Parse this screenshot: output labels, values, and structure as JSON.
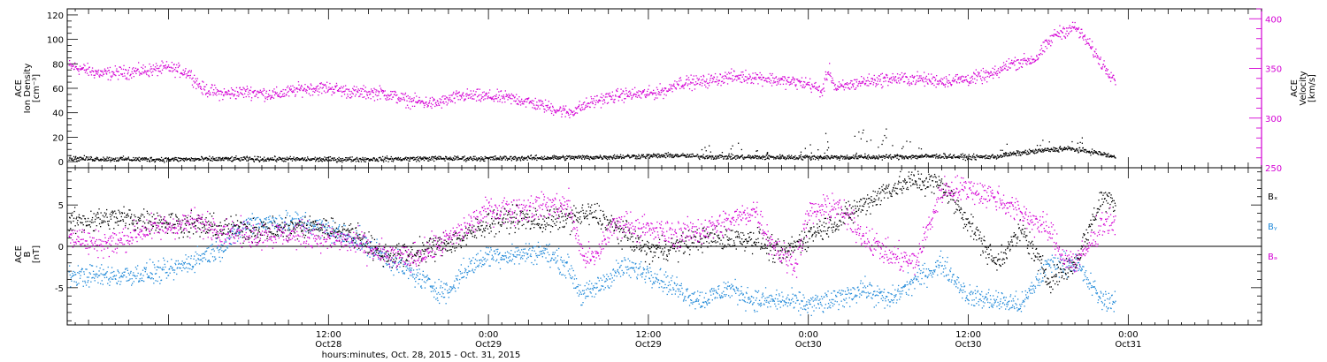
{
  "chart_data": [
    {
      "type": "scatter",
      "panel": "top",
      "xlabel": "hours:minutes, Oct. 28, 2015 - Oct. 31, 2015",
      "x_ticks": [
        {
          "hour": 12,
          "line1": "12:00",
          "line2": "Oct28"
        },
        {
          "hour": 24,
          "line1": "0:00",
          "line2": "Oct29"
        },
        {
          "hour": 36,
          "line1": "12:00",
          "line2": "Oct29"
        },
        {
          "hour": 48,
          "line1": "0:00",
          "line2": "Oct30"
        },
        {
          "hour": 60,
          "line1": "12:00",
          "line2": "Oct30"
        },
        {
          "hour": 72,
          "line1": "0:00",
          "line2": "Oct31"
        }
      ],
      "xlim_hours": [
        -7.6,
        82
      ],
      "left_axis": {
        "label_lines": [
          "ACE",
          "Ion Density",
          "[cm⁻³]"
        ],
        "ylim": [
          -5,
          125
        ],
        "ticks": [
          0,
          20,
          40,
          60,
          80,
          100,
          120
        ]
      },
      "right_axis": {
        "label_lines": [
          "ACE",
          "Velocity",
          "[km/s]"
        ],
        "ylim": [
          250,
          410
        ],
        "ticks": [
          250,
          300,
          350,
          400
        ]
      },
      "series": [
        {
          "axis": "left",
          "color": "#000000",
          "points": [
            [
              -7.5,
              3
            ],
            [
              -4,
              2.5
            ],
            [
              0,
              2.2
            ],
            [
              4,
              2.5
            ],
            [
              8,
              2.5
            ],
            [
              12,
              2.2
            ],
            [
              16,
              2.5
            ],
            [
              20,
              3
            ],
            [
              24,
              3
            ],
            [
              28,
              3.5
            ],
            [
              32,
              4
            ],
            [
              36,
              5
            ],
            [
              38,
              5.5
            ],
            [
              40,
              4.5
            ],
            [
              44,
              4
            ],
            [
              48,
              4
            ],
            [
              52,
              4
            ],
            [
              56,
              4.5
            ],
            [
              58,
              5
            ],
            [
              60,
              4
            ],
            [
              62,
              4.5
            ],
            [
              63.5,
              7
            ],
            [
              66,
              10
            ],
            [
              67.5,
              11
            ],
            [
              69.5,
              8
            ],
            [
              71,
              4
            ]
          ],
          "noise": 1.5,
          "spikes": [
            [
              40,
              15
            ],
            [
              42,
              18
            ],
            [
              45,
              14
            ],
            [
              48,
              17
            ],
            [
              50,
              25
            ],
            [
              52,
              30
            ],
            [
              53,
              28
            ],
            [
              54,
              22
            ],
            [
              56,
              20
            ],
            [
              62,
              15
            ],
            [
              66,
              18
            ],
            [
              68,
              20
            ]
          ]
        },
        {
          "axis": "right",
          "color": "#d400d4",
          "points": [
            [
              -7.5,
              353
            ],
            [
              -5,
              345
            ],
            [
              -2,
              348
            ],
            [
              0,
              351
            ],
            [
              1.5,
              346
            ],
            [
              2.5,
              330
            ],
            [
              4,
              325
            ],
            [
              6,
              327
            ],
            [
              8,
              324
            ],
            [
              10,
              330
            ],
            [
              12,
              331
            ],
            [
              14,
              326
            ],
            [
              16,
              326
            ],
            [
              18,
              318
            ],
            [
              20,
              315
            ],
            [
              22,
              323
            ],
            [
              24,
              322
            ],
            [
              26,
              320
            ],
            [
              28,
              313
            ],
            [
              30,
              306
            ],
            [
              32,
              318
            ],
            [
              34,
              324
            ],
            [
              36,
              325
            ],
            [
              37.5,
              329
            ],
            [
              38,
              336
            ],
            [
              40,
              337
            ],
            [
              42,
              342
            ],
            [
              44,
              342
            ],
            [
              46,
              338
            ],
            [
              48,
              335
            ],
            [
              49,
              327
            ],
            [
              49.5,
              350
            ],
            [
              50,
              330
            ],
            [
              52,
              337
            ],
            [
              54,
              340
            ],
            [
              56,
              340
            ],
            [
              58,
              338
            ],
            [
              60,
              340
            ],
            [
              62,
              345
            ],
            [
              63,
              355
            ],
            [
              65,
              360
            ],
            [
              66.5,
              385
            ],
            [
              68,
              392
            ],
            [
              69,
              375
            ],
            [
              70,
              355
            ],
            [
              71,
              340
            ]
          ],
          "noise": 5
        }
      ]
    },
    {
      "type": "scatter",
      "panel": "bottom",
      "left_axis": {
        "label_lines": [
          "ACE",
          "B",
          "[nT]"
        ],
        "ylim": [
          -9.5,
          9.5
        ],
        "ticks": [
          -5,
          0,
          5
        ],
        "zero_line": true
      },
      "legend": [
        "Bₓ",
        "Bᵧ",
        "Bₔ"
      ],
      "legend_colors": [
        "#000000",
        "#1f88d8",
        "#d400d4"
      ],
      "series": [
        {
          "name": "Bx",
          "color": "#000000",
          "points": [
            [
              -7.5,
              3
            ],
            [
              -4,
              3.5
            ],
            [
              0,
              3
            ],
            [
              4,
              2.2
            ],
            [
              8,
              2
            ],
            [
              11,
              2.5
            ],
            [
              14,
              1.5
            ],
            [
              16,
              -1
            ],
            [
              18,
              -1
            ],
            [
              20,
              0
            ],
            [
              22,
              1
            ],
            [
              24,
              3
            ],
            [
              26,
              3.5
            ],
            [
              28,
              3
            ],
            [
              32,
              4
            ],
            [
              36,
              -0.5
            ],
            [
              38,
              0
            ],
            [
              40,
              1
            ],
            [
              42,
              1
            ],
            [
              44,
              1
            ],
            [
              46,
              -1
            ],
            [
              48,
              1.5
            ],
            [
              50,
              3
            ],
            [
              52,
              5
            ],
            [
              54,
              7
            ],
            [
              56,
              8
            ],
            [
              58,
              7.5
            ],
            [
              60,
              3
            ],
            [
              62,
              -2
            ],
            [
              64,
              2
            ],
            [
              66,
              -4
            ],
            [
              68,
              -2
            ],
            [
              70,
              6
            ],
            [
              71,
              5.5
            ]
          ],
          "noise": 1.1
        },
        {
          "name": "By",
          "color": "#1f88d8",
          "points": [
            [
              -7.5,
              -3.5
            ],
            [
              -4,
              -3.5
            ],
            [
              0,
              -3
            ],
            [
              2,
              -1.5
            ],
            [
              4,
              0
            ],
            [
              6,
              3
            ],
            [
              8,
              3
            ],
            [
              10,
              3
            ],
            [
              12,
              2
            ],
            [
              14,
              1
            ],
            [
              16,
              -1
            ],
            [
              18,
              -3
            ],
            [
              20,
              -5
            ],
            [
              21,
              -5.5
            ],
            [
              22,
              -3
            ],
            [
              24,
              -1
            ],
            [
              26,
              -1
            ],
            [
              28,
              -0.5
            ],
            [
              30,
              -2.5
            ],
            [
              31,
              -6
            ],
            [
              32,
              -5
            ],
            [
              34,
              -2.5
            ],
            [
              36,
              -3
            ],
            [
              38,
              -5
            ],
            [
              40,
              -6.5
            ],
            [
              42,
              -5
            ],
            [
              44,
              -6.5
            ],
            [
              46,
              -6.5
            ],
            [
              48,
              -7
            ],
            [
              50,
              -6.5
            ],
            [
              52,
              -5
            ],
            [
              54,
              -6.5
            ],
            [
              56,
              -4
            ],
            [
              58,
              -2
            ],
            [
              60,
              -6
            ],
            [
              62,
              -6.5
            ],
            [
              64,
              -7
            ],
            [
              66,
              -2
            ],
            [
              68,
              -2
            ],
            [
              70,
              -6.5
            ],
            [
              71,
              -6.5
            ]
          ],
          "noise": 1.0
        },
        {
          "name": "Bz",
          "color": "#d400d4",
          "points": [
            [
              -7.5,
              1.5
            ],
            [
              -6,
              0.5
            ],
            [
              -4,
              0.5
            ],
            [
              -2,
              2
            ],
            [
              2,
              3
            ],
            [
              4,
              2
            ],
            [
              6,
              1.5
            ],
            [
              8,
              1.5
            ],
            [
              10,
              1.5
            ],
            [
              12,
              1
            ],
            [
              14,
              0.5
            ],
            [
              16,
              -1
            ],
            [
              18,
              -1.5
            ],
            [
              20,
              0
            ],
            [
              22,
              2
            ],
            [
              24,
              4.5
            ],
            [
              26,
              4.5
            ],
            [
              28,
              5
            ],
            [
              30,
              5
            ],
            [
              31,
              -1
            ],
            [
              32,
              -1.5
            ],
            [
              33,
              2
            ],
            [
              34,
              3
            ],
            [
              36,
              2
            ],
            [
              38,
              1.5
            ],
            [
              40,
              2
            ],
            [
              42,
              3
            ],
            [
              44,
              4.5
            ],
            [
              45,
              1
            ],
            [
              46,
              -1
            ],
            [
              47,
              -2
            ],
            [
              48,
              4
            ],
            [
              50,
              5
            ],
            [
              52,
              1.5
            ],
            [
              54,
              -1
            ],
            [
              56,
              -2
            ],
            [
              58,
              7
            ],
            [
              60,
              7
            ],
            [
              62,
              6
            ],
            [
              64,
              4
            ],
            [
              66,
              2
            ],
            [
              67,
              -1
            ],
            [
              68,
              -2
            ],
            [
              69,
              0
            ],
            [
              70,
              3
            ],
            [
              71,
              3
            ]
          ],
          "noise": 1.2
        }
      ]
    }
  ]
}
